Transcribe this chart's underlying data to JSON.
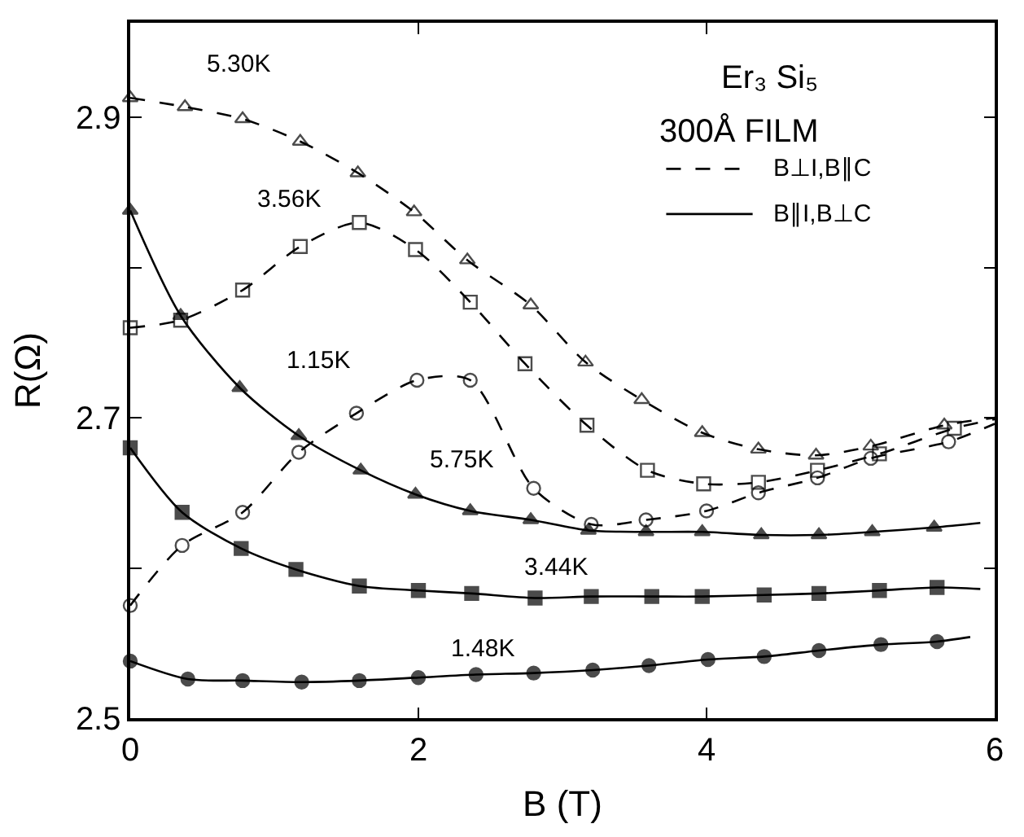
{
  "chart_data": {
    "type": "line",
    "title": "Er₃ Si₅",
    "subtitle": "300Å FILM",
    "xlabel": "B (T)",
    "ylabel": "R(Ω)",
    "xlim": [
      0,
      6
    ],
    "xticks": [
      0,
      2,
      4,
      6
    ],
    "ylim": [
      2.5,
      2.963
    ],
    "yticks": [
      2.5,
      {
        "value": 2.6,
        "label": null
      },
      2.7,
      {
        "value": 2.8,
        "label": null
      },
      2.9
    ],
    "annotations": [
      "B⊥I,B∥C",
      "B∥I,B⊥C"
    ],
    "series": [
      {
        "name": "5.30K",
        "color": "#000000",
        "marker": "triangle-open",
        "line_style": "dashed",
        "x": [
          0,
          0.38,
          0.78,
          1.18,
          1.58,
          1.97,
          2.34,
          2.78,
          3.16,
          3.55,
          3.97,
          4.36,
          4.76,
          5.14,
          5.65,
          6.0
        ],
        "values": [
          2.913,
          2.907,
          2.899,
          2.884,
          2.863,
          2.837,
          2.805,
          2.775,
          2.737,
          2.712,
          2.69,
          2.679,
          2.675,
          2.681,
          2.695,
          2.7
        ]
      },
      {
        "name": "3.56K",
        "color": "#000000",
        "marker": "square-open",
        "line_style": "dashed",
        "x": [
          0,
          0.35,
          0.78,
          1.18,
          1.59,
          1.98,
          2.36,
          2.74,
          3.17,
          3.59,
          3.98,
          4.36,
          4.77,
          5.2,
          5.72,
          6.0
        ],
        "values": [
          2.76,
          2.765,
          2.785,
          2.814,
          2.83,
          2.812,
          2.777,
          2.736,
          2.695,
          2.665,
          2.656,
          2.657,
          2.665,
          2.676,
          2.693,
          2.699
        ]
      },
      {
        "name": "1.15K",
        "color": "#000000",
        "marker": "circle-open",
        "line_style": "dashed",
        "x": [
          0,
          0.36,
          0.78,
          1.17,
          1.57,
          1.99,
          2.36,
          2.8,
          3.2,
          3.58,
          4.0,
          4.36,
          4.77,
          5.14,
          5.68,
          6.0
        ],
        "values": [
          2.575,
          2.615,
          2.637,
          2.677,
          2.703,
          2.725,
          2.725,
          2.653,
          2.629,
          2.632,
          2.638,
          2.65,
          2.66,
          2.673,
          2.684,
          2.696
        ]
      },
      {
        "name": "5.75K",
        "color": "#000000",
        "marker": "triangle",
        "line_style": "solid",
        "x": [
          0,
          0.35,
          0.76,
          1.17,
          1.6,
          1.98,
          2.36,
          2.78,
          3.18,
          3.58,
          3.97,
          4.38,
          4.78,
          5.15,
          5.58,
          5.9
        ],
        "values": [
          2.838,
          2.768,
          2.72,
          2.688,
          2.665,
          2.649,
          2.638,
          2.632,
          2.625,
          2.624,
          2.624,
          2.622,
          2.622,
          2.624,
          2.627,
          2.63
        ]
      },
      {
        "name": "3.44K",
        "color": "#000000",
        "marker": "square",
        "line_style": "solid",
        "x": [
          0,
          0.36,
          0.77,
          1.15,
          1.59,
          2.0,
          2.37,
          2.81,
          3.2,
          3.62,
          3.97,
          4.4,
          4.78,
          5.2,
          5.6,
          5.9
        ],
        "values": [
          2.68,
          2.637,
          2.613,
          2.599,
          2.588,
          2.585,
          2.583,
          2.58,
          2.581,
          2.581,
          2.581,
          2.582,
          2.583,
          2.585,
          2.587,
          2.586
        ]
      },
      {
        "name": "1.48K",
        "color": "#000000",
        "marker": "circle",
        "line_style": "solid",
        "x": [
          0,
          0.4,
          0.78,
          1.19,
          1.59,
          2.0,
          2.4,
          2.8,
          3.21,
          3.6,
          4.01,
          4.4,
          4.78,
          5.21,
          5.6,
          5.83
        ],
        "values": [
          2.538,
          2.526,
          2.525,
          2.524,
          2.525,
          2.527,
          2.529,
          2.53,
          2.532,
          2.535,
          2.539,
          2.541,
          2.545,
          2.549,
          2.551,
          2.554
        ]
      }
    ]
  }
}
